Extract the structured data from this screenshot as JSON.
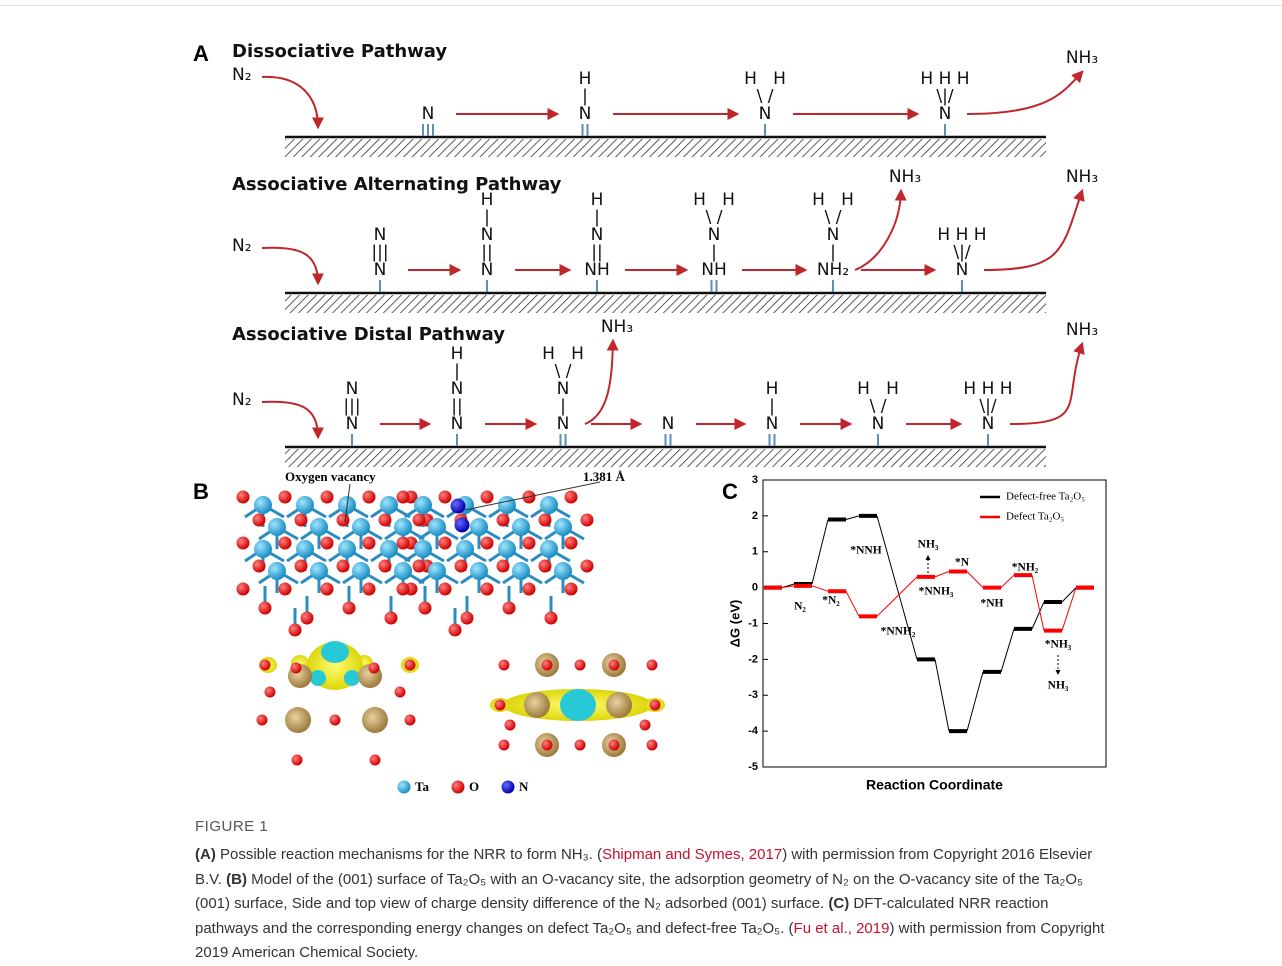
{
  "panel_a": {
    "label": "A",
    "pathways": [
      {
        "title": "Dissociative Pathway",
        "start": "N₂",
        "species": [
          [
            "N"
          ],
          [
            "H",
            "|",
            "N"
          ],
          [
            "H   H",
            "\\ /",
            "N"
          ],
          [
            "H H H",
            "\\|/",
            "N"
          ]
        ],
        "products": [
          "NH₃"
        ]
      },
      {
        "title": "Associative Alternating Pathway",
        "start": "N₂",
        "species": [
          [
            "N",
            "|||",
            "N"
          ],
          [
            "H",
            "|",
            "N",
            "||",
            "N"
          ],
          [
            "H",
            "|",
            "N",
            "||",
            "NH"
          ],
          [
            "H   H",
            "\\ /",
            "N",
            "|",
            "NH"
          ],
          [
            "H   H",
            "\\ /",
            "N",
            "|",
            "NH₂"
          ],
          [
            "H H H",
            "\\|/",
            "N"
          ]
        ],
        "products": [
          "NH₃",
          "NH₃"
        ]
      },
      {
        "title": "Associative Distal Pathway",
        "start": "N₂",
        "species": [
          [
            "N",
            "|||",
            "N"
          ],
          [
            "H",
            "|",
            "N",
            "||",
            "N"
          ],
          [
            "H   H",
            "\\ /",
            "N",
            "|",
            "N"
          ],
          [
            "N"
          ],
          [
            "H",
            "|",
            "N"
          ],
          [
            "H   H",
            "\\ /",
            "N"
          ],
          [
            "H H H",
            "\\|/",
            "N"
          ]
        ],
        "products": [
          "NH₃",
          "NH₃"
        ]
      }
    ]
  },
  "panel_b": {
    "label": "B",
    "annotations": [
      "Oxygen vacancy",
      "1.381 Å"
    ],
    "legend": [
      "Ta",
      "O",
      "N"
    ]
  },
  "panel_c": {
    "label": "C"
  },
  "chart_data": {
    "type": "line",
    "ylabel": "ΔG (eV)",
    "xlabel": "Reaction Coordinate",
    "categories": [
      null,
      null,
      null,
      null,
      null,
      null,
      null,
      null,
      null,
      null
    ],
    "ylim": [
      -5,
      3
    ],
    "yticks": [
      -5,
      -4,
      -3,
      -2,
      -1,
      0,
      1,
      2,
      3
    ],
    "legend": "upper right",
    "series": [
      {
        "name": "Defect-free Ta₂O₅",
        "color": "#000000",
        "values": [
          0,
          0.1,
          1.9,
          2.0,
          -2.0,
          -4.0,
          -2.35,
          -1.15,
          -0.4,
          0
        ]
      },
      {
        "name": "Defect Ta₂O₅",
        "color": "#ff0000",
        "values": [
          0,
          0.05,
          -0.1,
          -0.8,
          0.3,
          0.45,
          0,
          0.35,
          -1.2,
          0
        ]
      }
    ],
    "annotations": [
      "N₂",
      "*N₂",
      "*NNH",
      "*NNH₂",
      "NH₃",
      "*NNH₃",
      "*N",
      "*NH",
      "*NH₂",
      "*NH₃",
      "NH₃"
    ]
  },
  "caption": {
    "title": "FIGURE 1",
    "runs": [
      {
        "text": "(A)",
        "kind": "bold"
      },
      {
        "text": " Possible reaction mechanisms for the NRR to form NH₃. (",
        "kind": "plain"
      },
      {
        "text": "Shipman and Symes, 2017",
        "kind": "link"
      },
      {
        "text": ") with permission from Copyright 2016 Elsevier B.V. ",
        "kind": "plain"
      },
      {
        "text": "(B)",
        "kind": "bold"
      },
      {
        "text": " Model of the (001) surface of Ta₂O₅ with an O-vacancy site, the adsorption geometry of N₂ on the O-vacancy site of the Ta₂O₅ (001) surface, Side and top view of charge density difference of the N₂ adsorbed (001) surface. ",
        "kind": "plain"
      },
      {
        "text": "(C)",
        "kind": "bold"
      },
      {
        "text": " DFT-calculated NRR reaction pathways and the corresponding energy changes on defect Ta₂O₅ and defect-free Ta₂O₅. (",
        "kind": "plain"
      },
      {
        "text": "Fu et al., 2019",
        "kind": "link"
      },
      {
        "text": ") with permission from Copyright 2019 American Chemical Society.",
        "kind": "plain"
      }
    ]
  }
}
